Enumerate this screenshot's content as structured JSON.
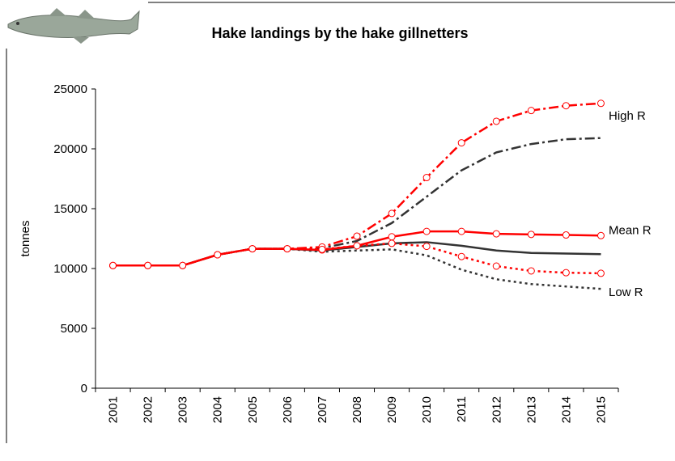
{
  "chart_data": {
    "type": "line",
    "title": "Hake landings by the hake gillnetters",
    "y_label": "tonnes",
    "categories": [
      "2001",
      "2002",
      "2003",
      "2004",
      "2005",
      "2006",
      "2007",
      "2008",
      "2009",
      "2010",
      "2011",
      "2012",
      "2013",
      "2014",
      "2015"
    ],
    "ylim": [
      0,
      25000
    ],
    "yticks": [
      0,
      5000,
      10000,
      15000,
      20000,
      25000
    ],
    "series": [
      {
        "color": "#333333",
        "dash": "dashdot",
        "marker": false,
        "values": [
          10250,
          10250,
          10250,
          11150,
          11650,
          11650,
          11700,
          12300,
          13800,
          16000,
          18200,
          19700,
          20400,
          20800,
          20900
        ]
      },
      {
        "color": "#333333",
        "dash": "solid",
        "marker": false,
        "values": [
          10250,
          10250,
          10250,
          11150,
          11650,
          11650,
          11500,
          11800,
          12100,
          12200,
          11900,
          11500,
          11300,
          11250,
          11200
        ]
      },
      {
        "color": "#333333",
        "dash": "dotted",
        "marker": false,
        "values": [
          10250,
          10250,
          10250,
          11150,
          11650,
          11650,
          11400,
          11500,
          11600,
          11100,
          9900,
          9100,
          8700,
          8500,
          8300
        ]
      },
      {
        "name": "High R",
        "color": "#ff0000",
        "dash": "dashdot",
        "marker": true,
        "values": [
          10250,
          10250,
          10250,
          11150,
          11650,
          11650,
          11800,
          12700,
          14600,
          17600,
          20500,
          22300,
          23200,
          23600,
          23800
        ]
      },
      {
        "name": "Mean R",
        "color": "#ff0000",
        "dash": "solid",
        "marker": true,
        "values": [
          10250,
          10250,
          10250,
          11150,
          11650,
          11650,
          11550,
          11900,
          12650,
          13100,
          13100,
          12900,
          12850,
          12800,
          12750
        ]
      },
      {
        "name": "Low R",
        "color": "#ff0000",
        "dash": "dotted",
        "marker": true,
        "values": [
          10250,
          10250,
          10250,
          11150,
          11650,
          11650,
          11600,
          11900,
          12100,
          11850,
          11000,
          10200,
          9800,
          9650,
          9600
        ]
      }
    ]
  }
}
